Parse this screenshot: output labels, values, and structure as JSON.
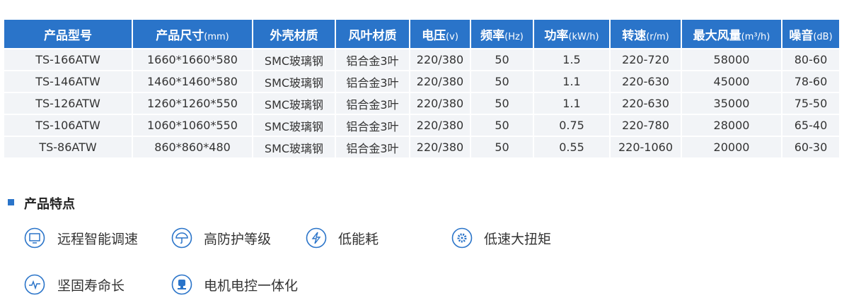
{
  "table": {
    "headers": [
      {
        "name": "产品型号"
      },
      {
        "name": "产品尺寸",
        "unit": "(mm)"
      },
      {
        "name": "外壳材质"
      },
      {
        "name": "风叶材质"
      },
      {
        "name": "电压",
        "unit": "(v)"
      },
      {
        "name": "频率",
        "unit": "(Hz)"
      },
      {
        "name": "功率",
        "unit": "(kW/h)"
      },
      {
        "name": "转速",
        "unit": "(r/m)"
      },
      {
        "name": "最大风量",
        "unit": "(m³/h)"
      },
      {
        "name": "噪音",
        "unit": "(dB)"
      }
    ],
    "rows": [
      [
        "TS-166ATW",
        "1660*1660*580",
        "SMC玻璃钢",
        "铝合金3叶",
        "220/380",
        "50",
        "1.5",
        "220-720",
        "58000",
        "80-60"
      ],
      [
        "TS-146ATW",
        "1460*1460*580",
        "SMC玻璃钢",
        "铝合金3叶",
        "220/380",
        "50",
        "1.1",
        "220-630",
        "45000",
        "78-60"
      ],
      [
        "TS-126ATW",
        "1260*1260*550",
        "SMC玻璃钢",
        "铝合金3叶",
        "220/380",
        "50",
        "1.1",
        "220-630",
        "35000",
        "75-50"
      ],
      [
        "TS-106ATW",
        "1060*1060*550",
        "SMC玻璃钢",
        "铝合金3叶",
        "220/380",
        "50",
        "0.75",
        "220-780",
        "28000",
        "65-40"
      ],
      [
        "TS-86ATW",
        "860*860*480",
        "SMC玻璃钢",
        "铝合金3叶",
        "220/380",
        "50",
        "0.55",
        "220-1060",
        "20000",
        "60-30"
      ]
    ]
  },
  "features": {
    "title": "产品特点",
    "items": [
      "远程智能调速",
      "高防护等级",
      "低能耗",
      "低速大扭矩",
      "坚固寿命长",
      "电机电控一体化"
    ]
  }
}
